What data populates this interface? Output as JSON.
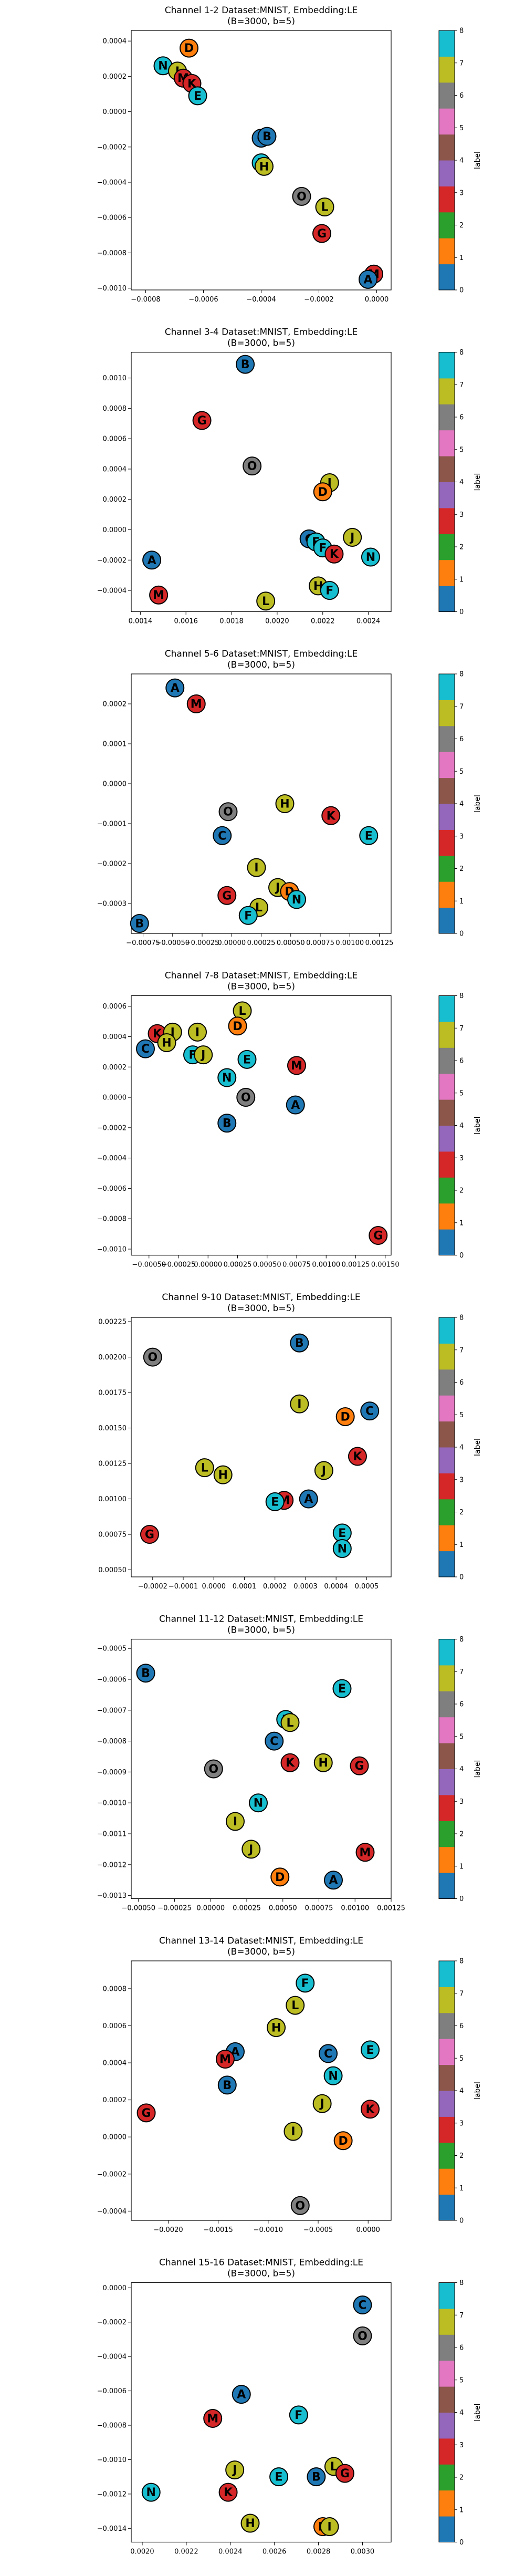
{
  "colorbar": {
    "label": "label",
    "ticks": [
      "0",
      "1",
      "2",
      "3",
      "4",
      "5",
      "6",
      "7",
      "8"
    ],
    "colors": [
      "#1f77b4",
      "#ff7f0e",
      "#2ca02c",
      "#d62728",
      "#9467bd",
      "#8c564b",
      "#e377c2",
      "#7f7f7f",
      "#bcbd22",
      "#17becf"
    ]
  },
  "letter_label": {
    "A": 0,
    "B": 0,
    "C": 0,
    "D": 1,
    "E": 9,
    "F": 9,
    "G": 3,
    "H": 8,
    "I": 8,
    "J": 8,
    "K": 3,
    "L": 8,
    "M": 3,
    "N": 9,
    "O": 7
  },
  "chart_data": [
    {
      "type": "scatter",
      "title": "Channel 1-2 Dataset:MNIST, Embedding:LE",
      "subtitle": "(B=3000, b=5)",
      "xlim": [
        -0.00085,
        5e-05
      ],
      "ylim": [
        -0.00101,
        0.00046
      ],
      "xticks": [
        -0.0008,
        -0.0006,
        -0.0004,
        -0.0002,
        0.0
      ],
      "xtick_labels": [
        "−0.0008",
        "−0.0006",
        "−0.0004",
        "−0.0002",
        "0.0000"
      ],
      "yticks": [
        -0.001,
        -0.0008,
        -0.0006,
        -0.0004,
        -0.0002,
        0.0,
        0.0002,
        0.0004
      ],
      "ytick_labels": [
        "−0.0010",
        "−0.0008",
        "−0.0006",
        "−0.0004",
        "−0.0002",
        "0.0000",
        "0.0002",
        "0.0004"
      ],
      "points": [
        {
          "label": "N",
          "x": -0.00074,
          "y": 0.00026
        },
        {
          "label": "D",
          "x": -0.00065,
          "y": 0.00036
        },
        {
          "label": "J",
          "x": -0.00069,
          "y": 0.00023
        },
        {
          "label": "M",
          "x": -0.00067,
          "y": 0.00019
        },
        {
          "label": "K",
          "x": -0.00064,
          "y": 0.00016
        },
        {
          "label": "E",
          "x": -0.00062,
          "y": 9e-05
        },
        {
          "label": "C",
          "x": -0.0004,
          "y": -0.00015
        },
        {
          "label": "B",
          "x": -0.00038,
          "y": -0.00014
        },
        {
          "label": "F",
          "x": -0.0004,
          "y": -0.00029
        },
        {
          "label": "H",
          "x": -0.00039,
          "y": -0.00031
        },
        {
          "label": "O",
          "x": -0.00026,
          "y": -0.00048
        },
        {
          "label": "L",
          "x": -0.00018,
          "y": -0.00054
        },
        {
          "label": "G",
          "x": -0.00019,
          "y": -0.00069
        },
        {
          "label": "M",
          "x": -1e-05,
          "y": -0.00092
        },
        {
          "label": "A",
          "x": -3e-05,
          "y": -0.00095
        }
      ]
    },
    {
      "type": "scatter",
      "title": "Channel 3-4 Dataset:MNIST, Embedding:LE",
      "subtitle": "(B=3000, b=5)",
      "xlim": [
        0.00136,
        0.0025
      ],
      "ylim": [
        -0.00054,
        0.00117
      ],
      "xticks": [
        0.0014,
        0.0016,
        0.0018,
        0.002,
        0.0022,
        0.0024
      ],
      "xtick_labels": [
        "0.0014",
        "0.0016",
        "0.0018",
        "0.0020",
        "0.0022",
        "0.0024"
      ],
      "yticks": [
        -0.0004,
        -0.0002,
        0.0,
        0.0002,
        0.0004,
        0.0006,
        0.0008,
        0.001
      ],
      "ytick_labels": [
        "−0.0004",
        "−0.0002",
        "0.0000",
        "0.0002",
        "0.0004",
        "0.0006",
        "0.0008",
        "0.0010"
      ],
      "points": [
        {
          "label": "B",
          "x": 0.00186,
          "y": 0.00109
        },
        {
          "label": "G",
          "x": 0.00167,
          "y": 0.00072
        },
        {
          "label": "O",
          "x": 0.00189,
          "y": 0.00042
        },
        {
          "label": "I",
          "x": 0.00223,
          "y": 0.00031
        },
        {
          "label": "D",
          "x": 0.0022,
          "y": 0.00025
        },
        {
          "label": "C",
          "x": 0.00214,
          "y": -6e-05
        },
        {
          "label": "E",
          "x": 0.00217,
          "y": -8e-05
        },
        {
          "label": "J",
          "x": 0.00233,
          "y": -5e-05
        },
        {
          "label": "F",
          "x": 0.0022,
          "y": -0.00012
        },
        {
          "label": "K",
          "x": 0.00225,
          "y": -0.00016
        },
        {
          "label": "N",
          "x": 0.00241,
          "y": -0.00018
        },
        {
          "label": "A",
          "x": 0.00145,
          "y": -0.0002
        },
        {
          "label": "H",
          "x": 0.00218,
          "y": -0.00037
        },
        {
          "label": "F",
          "x": 0.00223,
          "y": -0.0004
        },
        {
          "label": "M",
          "x": 0.00148,
          "y": -0.00043
        },
        {
          "label": "L",
          "x": 0.00195,
          "y": -0.00047
        }
      ]
    },
    {
      "type": "scatter",
      "title": "Channel 5-6 Dataset:MNIST, Embedding:LE",
      "subtitle": "(B=3000, b=5)",
      "xlim": [
        -0.00085,
        0.00135
      ],
      "ylim": [
        -0.000375,
        0.000275
      ],
      "xticks": [
        -0.00075,
        -0.0005,
        -0.00025,
        0.0,
        0.00025,
        0.0005,
        0.00075,
        0.001,
        0.00125
      ],
      "xtick_labels": [
        "−0.00075",
        "−0.00050",
        "−0.00025",
        "0.00000",
        "0.00025",
        "0.00050",
        "0.00075",
        "0.00100",
        "0.00125"
      ],
      "yticks": [
        -0.0003,
        -0.0002,
        -0.0001,
        0.0,
        0.0001,
        0.0002
      ],
      "ytick_labels": [
        "−0.0003",
        "−0.0002",
        "−0.0001",
        "0.0000",
        "0.0001",
        "0.0002"
      ],
      "points": [
        {
          "label": "A",
          "x": -0.00048,
          "y": 0.00024
        },
        {
          "label": "M",
          "x": -0.0003,
          "y": 0.0002
        },
        {
          "label": "O",
          "x": -3e-05,
          "y": -7e-05
        },
        {
          "label": "H",
          "x": 0.00045,
          "y": -5e-05
        },
        {
          "label": "K",
          "x": 0.00084,
          "y": -8e-05
        },
        {
          "label": "C",
          "x": -8e-05,
          "y": -0.00013
        },
        {
          "label": "E",
          "x": 0.00116,
          "y": -0.00013
        },
        {
          "label": "I",
          "x": 0.00021,
          "y": -0.00021
        },
        {
          "label": "J",
          "x": 0.00039,
          "y": -0.00026
        },
        {
          "label": "D",
          "x": 0.00049,
          "y": -0.00027
        },
        {
          "label": "G",
          "x": -4e-05,
          "y": -0.00028
        },
        {
          "label": "N",
          "x": 0.00055,
          "y": -0.00029
        },
        {
          "label": "L",
          "x": 0.00023,
          "y": -0.00031
        },
        {
          "label": "F",
          "x": 0.00014,
          "y": -0.00033
        },
        {
          "label": "B",
          "x": -0.00078,
          "y": -0.00035
        }
      ]
    },
    {
      "type": "scatter",
      "title": "Channel 7-8 Dataset:MNIST, Embedding:LE",
      "subtitle": "(B=3000, b=5)",
      "xlim": [
        -0.00065,
        0.00155
      ],
      "ylim": [
        -0.00104,
        0.00067
      ],
      "xticks": [
        -0.0005,
        -0.00025,
        0.0,
        0.00025,
        0.0005,
        0.00075,
        0.001,
        0.00125,
        0.0015
      ],
      "xtick_labels": [
        "−0.00050",
        "−0.00025",
        "0.00000",
        "0.00025",
        "0.00050",
        "0.00075",
        "0.00100",
        "0.00125",
        "0.00150"
      ],
      "yticks": [
        -0.001,
        -0.0008,
        -0.0006,
        -0.0004,
        -0.0002,
        0.0,
        0.0002,
        0.0004,
        0.0006
      ],
      "ytick_labels": [
        "−0.0010",
        "−0.0008",
        "−0.0006",
        "−0.0004",
        "−0.0002",
        "0.0000",
        "0.0002",
        "0.0004",
        "0.0006"
      ],
      "points": [
        {
          "label": "L",
          "x": 0.00029,
          "y": 0.00057
        },
        {
          "label": "D",
          "x": 0.00025,
          "y": 0.00047
        },
        {
          "label": "K",
          "x": -0.00043,
          "y": 0.00042
        },
        {
          "label": "J",
          "x": -0.0003,
          "y": 0.00043
        },
        {
          "label": "I",
          "x": -9e-05,
          "y": 0.00043
        },
        {
          "label": "H",
          "x": -0.00035,
          "y": 0.00036
        },
        {
          "label": "C",
          "x": -0.00053,
          "y": 0.00032
        },
        {
          "label": "F",
          "x": -0.00013,
          "y": 0.00028
        },
        {
          "label": "J",
          "x": -4e-05,
          "y": 0.00028
        },
        {
          "label": "E",
          "x": 0.00033,
          "y": 0.00025
        },
        {
          "label": "M",
          "x": 0.00075,
          "y": 0.00021
        },
        {
          "label": "N",
          "x": 0.00016,
          "y": 0.00013
        },
        {
          "label": "O",
          "x": 0.00032,
          "y": 0.0
        },
        {
          "label": "A",
          "x": 0.00074,
          "y": -5e-05
        },
        {
          "label": "B",
          "x": 0.00016,
          "y": -0.00017
        },
        {
          "label": "G",
          "x": 0.00144,
          "y": -0.00091
        }
      ]
    },
    {
      "type": "scatter",
      "title": "Channel 9-10 Dataset:MNIST, Embedding:LE",
      "subtitle": "(B=3000, b=5)",
      "xlim": [
        -0.00027,
        0.00058
      ],
      "ylim": [
        0.00045,
        0.00228
      ],
      "xticks": [
        -0.0002,
        -0.0001,
        0.0,
        0.0001,
        0.0002,
        0.0003,
        0.0004,
        0.0005
      ],
      "xtick_labels": [
        "−0.0002",
        "−0.0001",
        "0.0000",
        "0.0001",
        "0.0002",
        "0.0003",
        "0.0004",
        "0.0005"
      ],
      "yticks": [
        0.0005,
        0.00075,
        0.001,
        0.00125,
        0.0015,
        0.00175,
        0.002,
        0.00225
      ],
      "ytick_labels": [
        "0.00050",
        "0.00075",
        "0.00100",
        "0.00125",
        "0.00150",
        "0.00175",
        "0.00200",
        "0.00225"
      ],
      "points": [
        {
          "label": "B",
          "x": 0.00028,
          "y": 0.0021
        },
        {
          "label": "O",
          "x": -0.0002,
          "y": 0.002
        },
        {
          "label": "I",
          "x": 0.00028,
          "y": 0.00167
        },
        {
          "label": "C",
          "x": 0.00051,
          "y": 0.00162
        },
        {
          "label": "D",
          "x": 0.00043,
          "y": 0.00158
        },
        {
          "label": "K",
          "x": 0.00047,
          "y": 0.0013
        },
        {
          "label": "L",
          "x": -3e-05,
          "y": 0.00122
        },
        {
          "label": "J",
          "x": 0.00036,
          "y": 0.0012
        },
        {
          "label": "H",
          "x": 3e-05,
          "y": 0.00117
        },
        {
          "label": "A",
          "x": 0.00031,
          "y": 0.001
        },
        {
          "label": "M",
          "x": 0.00023,
          "y": 0.00099
        },
        {
          "label": "E",
          "x": 0.0002,
          "y": 0.00098
        },
        {
          "label": "E",
          "x": 0.00042,
          "y": 0.00076
        },
        {
          "label": "G",
          "x": -0.00021,
          "y": 0.00075
        },
        {
          "label": "N",
          "x": 0.00042,
          "y": 0.00065
        }
      ]
    },
    {
      "type": "scatter",
      "title": "Channel 11-12 Dataset:MNIST, Embedding:LE",
      "subtitle": "(B=3000, b=5)",
      "xlim": [
        -0.00055,
        0.00125
      ],
      "ylim": [
        -0.00131,
        -0.00047
      ],
      "xticks": [
        -0.0005,
        -0.00025,
        0.0,
        0.00025,
        0.0005,
        0.00075,
        0.001,
        0.00125
      ],
      "xtick_labels": [
        "−0.00050",
        "−0.00025",
        "0.00000",
        "0.00025",
        "0.00050",
        "0.00075",
        "0.00100",
        "0.00125"
      ],
      "yticks": [
        -0.0013,
        -0.0012,
        -0.0011,
        -0.001,
        -0.0009,
        -0.0008,
        -0.0007,
        -0.0006,
        -0.0005
      ],
      "ytick_labels": [
        "−0.0013",
        "−0.0012",
        "−0.0011",
        "−0.0010",
        "−0.0009",
        "−0.0008",
        "−0.0007",
        "−0.0006",
        "−0.0005"
      ],
      "points": [
        {
          "label": "B",
          "x": -0.00045,
          "y": -0.00058
        },
        {
          "label": "E",
          "x": 0.00091,
          "y": -0.00063
        },
        {
          "label": "F",
          "x": 0.00052,
          "y": -0.00073
        },
        {
          "label": "L",
          "x": 0.00055,
          "y": -0.00074
        },
        {
          "label": "C",
          "x": 0.00044,
          "y": -0.0008
        },
        {
          "label": "K",
          "x": 0.00055,
          "y": -0.00087
        },
        {
          "label": "H",
          "x": 0.00078,
          "y": -0.00087
        },
        {
          "label": "G",
          "x": 0.00103,
          "y": -0.00088
        },
        {
          "label": "O",
          "x": 2e-05,
          "y": -0.00089
        },
        {
          "label": "N",
          "x": 0.00033,
          "y": -0.001
        },
        {
          "label": "I",
          "x": 0.00017,
          "y": -0.00106
        },
        {
          "label": "J",
          "x": 0.00028,
          "y": -0.00115
        },
        {
          "label": "M",
          "x": 0.00107,
          "y": -0.00116
        },
        {
          "label": "D",
          "x": 0.00048,
          "y": -0.00124
        },
        {
          "label": "A",
          "x": 0.00085,
          "y": -0.00125
        }
      ]
    },
    {
      "type": "scatter",
      "title": "Channel 13-14 Dataset:MNIST, Embedding:LE",
      "subtitle": "(B=3000, b=5)",
      "xlim": [
        -0.00237,
        0.00023
      ],
      "ylim": [
        -0.00045,
        0.00095
      ],
      "xticks": [
        -0.002,
        -0.0015,
        -0.001,
        -0.0005,
        0.0
      ],
      "xtick_labels": [
        "−0.0020",
        "−0.0015",
        "−0.0010",
        "−0.0005",
        "0.0000"
      ],
      "yticks": [
        -0.0004,
        -0.0002,
        0.0,
        0.0002,
        0.0004,
        0.0006,
        0.0008
      ],
      "ytick_labels": [
        "−0.0004",
        "−0.0002",
        "0.0000",
        "0.0002",
        "0.0004",
        "0.0006",
        "0.0008"
      ],
      "points": [
        {
          "label": "F",
          "x": -0.00063,
          "y": 0.00083
        },
        {
          "label": "L",
          "x": -0.00073,
          "y": 0.00071
        },
        {
          "label": "H",
          "x": -0.00092,
          "y": 0.00059
        },
        {
          "label": "A",
          "x": -0.00133,
          "y": 0.00046
        },
        {
          "label": "M",
          "x": -0.00143,
          "y": 0.00042
        },
        {
          "label": "C",
          "x": -0.0004,
          "y": 0.00045
        },
        {
          "label": "E",
          "x": 2e-05,
          "y": 0.00047
        },
        {
          "label": "N",
          "x": -0.00035,
          "y": 0.00033
        },
        {
          "label": "B",
          "x": -0.00141,
          "y": 0.00028
        },
        {
          "label": "J",
          "x": -0.00046,
          "y": 0.00018
        },
        {
          "label": "K",
          "x": 2e-05,
          "y": 0.00015
        },
        {
          "label": "G",
          "x": -0.00222,
          "y": 0.00013
        },
        {
          "label": "I",
          "x": -0.00075,
          "y": 3e-05
        },
        {
          "label": "D",
          "x": -0.00025,
          "y": -2e-05
        },
        {
          "label": "O",
          "x": -0.00068,
          "y": -0.00037
        }
      ]
    },
    {
      "type": "scatter",
      "title": "Channel 15-16 Dataset:MNIST, Embedding:LE",
      "subtitle": "(B=3000, b=5)",
      "xlim": [
        0.00195,
        0.00313
      ],
      "ylim": [
        -0.00148,
        3e-05
      ],
      "xticks": [
        0.002,
        0.0022,
        0.0024,
        0.0026,
        0.0028,
        0.003
      ],
      "xtick_labels": [
        "0.0020",
        "0.0022",
        "0.0024",
        "0.0026",
        "0.0028",
        "0.0030"
      ],
      "yticks": [
        -0.0014,
        -0.0012,
        -0.001,
        -0.0008,
        -0.0006,
        -0.0004,
        -0.0002,
        0.0
      ],
      "ytick_labels": [
        "−0.0014",
        "−0.0012",
        "−0.0010",
        "−0.0008",
        "−0.0006",
        "−0.0004",
        "−0.0002",
        "0.0000"
      ],
      "points": [
        {
          "label": "C",
          "x": 0.003,
          "y": -0.0001
        },
        {
          "label": "O",
          "x": 0.003,
          "y": -0.00028
        },
        {
          "label": "A",
          "x": 0.00245,
          "y": -0.00062
        },
        {
          "label": "F",
          "x": 0.00271,
          "y": -0.00074
        },
        {
          "label": "M",
          "x": 0.00232,
          "y": -0.00076
        },
        {
          "label": "J",
          "x": 0.00242,
          "y": -0.00106
        },
        {
          "label": "L",
          "x": 0.00287,
          "y": -0.00104
        },
        {
          "label": "G",
          "x": 0.00292,
          "y": -0.00108
        },
        {
          "label": "E",
          "x": 0.00262,
          "y": -0.0011
        },
        {
          "label": "B",
          "x": 0.00279,
          "y": -0.0011
        },
        {
          "label": "K",
          "x": 0.00239,
          "y": -0.00119
        },
        {
          "label": "N",
          "x": 0.00204,
          "y": -0.00119
        },
        {
          "label": "H",
          "x": 0.00249,
          "y": -0.00137
        },
        {
          "label": "D",
          "x": 0.00282,
          "y": -0.00139
        },
        {
          "label": "I",
          "x": 0.00285,
          "y": -0.00139
        }
      ]
    }
  ]
}
